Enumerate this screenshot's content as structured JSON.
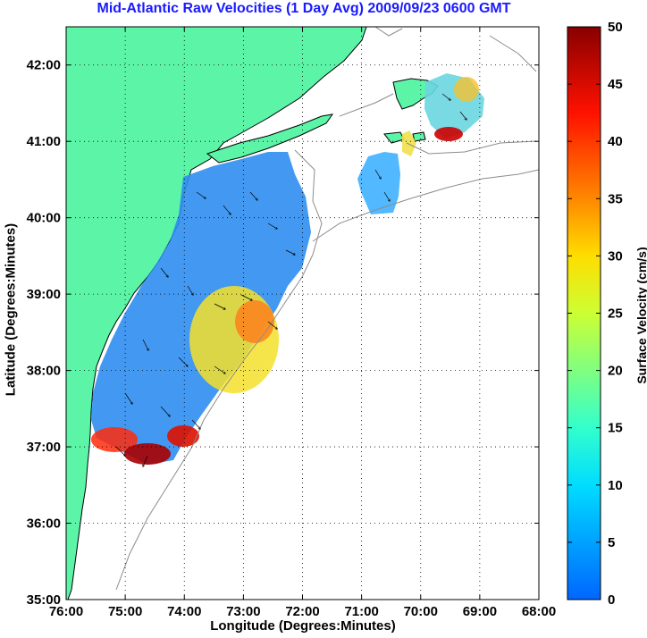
{
  "chart_data": {
    "type": "heatmap",
    "title": "Mid-Atlantic Raw Velocities (1 Day Avg) 2009/09/23 0600 GMT",
    "xlabel": "Longitude (Degrees:Minutes)",
    "ylabel": "Latitude (Degrees:Minutes)",
    "colorbar_label": "Surface Velocity (cm/s)",
    "xlim": [
      -76,
      -68
    ],
    "ylim": [
      35,
      42.5
    ],
    "clim": [
      0,
      50
    ],
    "grid": true,
    "x_ticks": [
      {
        "value": -76,
        "label": "76:00"
      },
      {
        "value": -75,
        "label": "75:00"
      },
      {
        "value": -74,
        "label": "74:00"
      },
      {
        "value": -73,
        "label": "73:00"
      },
      {
        "value": -72,
        "label": "72:00"
      },
      {
        "value": -71,
        "label": "71:00"
      },
      {
        "value": -70,
        "label": "70:00"
      },
      {
        "value": -69,
        "label": "69:00"
      },
      {
        "value": -68,
        "label": "68:00"
      }
    ],
    "y_ticks": [
      {
        "value": 35,
        "label": "35:00"
      },
      {
        "value": 36,
        "label": "36:00"
      },
      {
        "value": 37,
        "label": "37:00"
      },
      {
        "value": 38,
        "label": "38:00"
      },
      {
        "value": 39,
        "label": "39:00"
      },
      {
        "value": 40,
        "label": "40:00"
      },
      {
        "value": 41,
        "label": "41:00"
      },
      {
        "value": 42,
        "label": "42:00"
      }
    ],
    "colorbar_ticks": [
      0,
      5,
      10,
      15,
      20,
      25,
      30,
      35,
      40,
      45,
      50
    ],
    "colors": {
      "land": "#5cf5a8",
      "coast": "#000000",
      "isobath": "#8c8c8c",
      "grid": "#000000",
      "title": "#1a1aff"
    }
  }
}
